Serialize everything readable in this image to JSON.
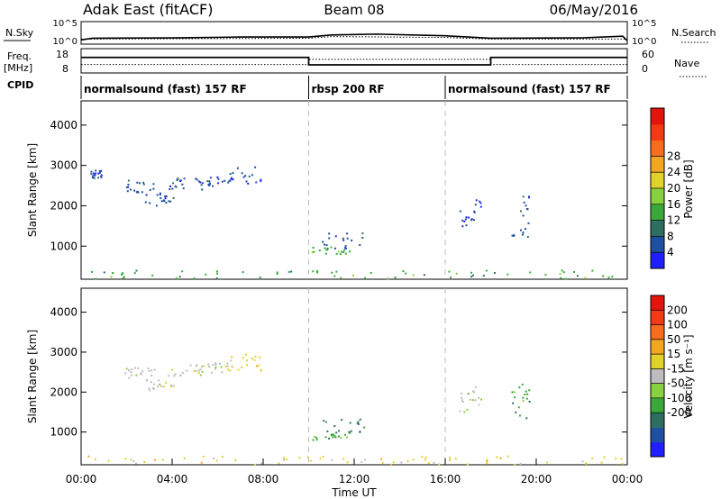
{
  "header": {
    "title": "Adak East (fitACF)",
    "beam": "Beam 08",
    "date": "06/May/2016"
  },
  "chart_data": [
    {
      "type": "line",
      "name": "noise",
      "left_label": "N.Sky",
      "right_label": "N.Search",
      "yticks_left": [
        "10^5",
        "10^0"
      ],
      "yticks_right": [
        "10^5",
        "10^0"
      ],
      "series": [
        {
          "name": "N.Sky",
          "style": "solid",
          "x_hours": [
            0,
            0.5,
            4,
            7,
            10,
            11,
            13,
            16,
            18,
            22,
            23.8,
            24
          ],
          "log10_values": [
            0.8,
            1.2,
            1.3,
            1.5,
            1.5,
            2.0,
            2.2,
            1.8,
            1.2,
            1.3,
            1.7,
            0.6
          ]
        },
        {
          "name": "N.Search",
          "style": "dotted",
          "x_hours": [
            0,
            10,
            11,
            16,
            18,
            24
          ],
          "log10_values": [
            1.0,
            1.2,
            1.6,
            1.4,
            1.0,
            1.0
          ]
        }
      ]
    },
    {
      "type": "line",
      "name": "frequency",
      "left_label": "Freq.",
      "left_unit": "[MHz]",
      "right_label": "Nave",
      "yticks_left": [
        "18",
        "8"
      ],
      "yticks_right": [
        "60",
        "0"
      ],
      "ylim_left": [
        8,
        18
      ],
      "ylim_right": [
        0,
        60
      ],
      "series": [
        {
          "name": "Freq.",
          "style": "solid",
          "x_hours": [
            0,
            10,
            10,
            18,
            18,
            24
          ],
          "values": [
            14.5,
            14.5,
            11.2,
            11.2,
            14.5,
            14.5
          ]
        },
        {
          "name": "Nave",
          "style": "dotted",
          "x_hours": [
            0,
            10,
            10,
            18,
            18,
            24
          ],
          "values": [
            20,
            20,
            34,
            34,
            20,
            20
          ]
        }
      ]
    },
    {
      "type": "table",
      "name": "cpid",
      "label": "CPID",
      "segments": [
        {
          "text": "normalsound (fast) 157 RF",
          "start_hour": 0
        },
        {
          "text": "rbsp 200 RF",
          "start_hour": 10
        },
        {
          "text": "normalsound (fast) 157 RF",
          "start_hour": 16
        }
      ]
    },
    {
      "type": "heatmap",
      "name": "power",
      "ylabel": "Slant Range [km]",
      "yticks": [
        1000,
        2000,
        3000,
        4000
      ],
      "ylim": [
        180,
        4600
      ],
      "xlim_hours": [
        0,
        24
      ],
      "colorbar": {
        "label": "Power [dB]",
        "ticks": [
          "4",
          "8",
          "12",
          "16",
          "20",
          "24",
          "28"
        ],
        "colors": [
          "#1f1fff",
          "#1f4fa0",
          "#2e6e62",
          "#3aa83a",
          "#86d13d",
          "#e1d128",
          "#f3a622",
          "#f66e1c",
          "#f23a14",
          "#e3140c"
        ]
      },
      "blobs": [
        {
          "h0": 0.3,
          "h1": 0.9,
          "r0": 2700,
          "r1": 2900,
          "color_index": 1
        },
        {
          "h0": 1.9,
          "h1": 3.2,
          "r0": 2350,
          "r1": 2650,
          "color_index": 1
        },
        {
          "h0": 2.8,
          "h1": 4.1,
          "r0": 2000,
          "r1": 2350,
          "color_index": 1
        },
        {
          "h0": 3.8,
          "h1": 5.3,
          "r0": 2400,
          "r1": 2700,
          "color_index": 1
        },
        {
          "h0": 5.2,
          "h1": 6.6,
          "r0": 2500,
          "r1": 2750,
          "color_index": 1
        },
        {
          "h0": 6.5,
          "h1": 7.9,
          "r0": 2550,
          "r1": 3000,
          "color_index": 1
        },
        {
          "h0": 10.1,
          "h1": 11.8,
          "r0": 800,
          "r1": 1000,
          "color_index": 3
        },
        {
          "h0": 10.5,
          "h1": 12.4,
          "r0": 950,
          "r1": 1350,
          "color_index": 1
        },
        {
          "h0": 16.6,
          "h1": 17.6,
          "r0": 1500,
          "r1": 2200,
          "color_index": 1
        },
        {
          "h0": 18.9,
          "h1": 19.7,
          "r0": 1200,
          "r1": 2300,
          "color_index": 1
        },
        {
          "h0": 0.2,
          "h1": 23.9,
          "r0": 200,
          "r1": 420,
          "color_index": 3
        }
      ]
    },
    {
      "type": "heatmap",
      "name": "velocity",
      "ylabel": "Slant Range [km]",
      "xlabel": "Time UT",
      "yticks": [
        1000,
        2000,
        3000,
        4000
      ],
      "ylim": [
        180,
        4600
      ],
      "xlim_hours": [
        0,
        24
      ],
      "xticks": [
        "00:00",
        "04:00",
        "08:00",
        "12:00",
        "16:00",
        "20:00",
        "00:00"
      ],
      "xticks_hours": [
        0,
        4,
        8,
        12,
        16,
        20,
        24
      ],
      "colorbar": {
        "label": "Velocity [m s⁻¹]",
        "ticks": [
          "200",
          "100",
          "50",
          "15",
          "-15",
          "-50",
          "-100",
          "-200"
        ],
        "colors": [
          "#1f1fff",
          "#1f4fa0",
          "#2e6e62",
          "#3aa83a",
          "#86d13d",
          "#bdbdbd",
          "#e1d128",
          "#f3a622",
          "#f66e1c",
          "#f23a14",
          "#e3140c"
        ]
      },
      "blobs": [
        {
          "h0": 1.9,
          "h1": 3.2,
          "r0": 2350,
          "r1": 2650,
          "color_index": 5
        },
        {
          "h0": 2.8,
          "h1": 4.1,
          "r0": 2000,
          "r1": 2350,
          "color_index": 5
        },
        {
          "h0": 3.8,
          "h1": 5.3,
          "r0": 2400,
          "r1": 2700,
          "color_index": 5
        },
        {
          "h0": 5.2,
          "h1": 6.6,
          "r0": 2500,
          "r1": 2750,
          "color_index": 5
        },
        {
          "h0": 6.5,
          "h1": 7.9,
          "r0": 2550,
          "r1": 3000,
          "color_index": 6
        },
        {
          "h0": 10.1,
          "h1": 11.8,
          "r0": 800,
          "r1": 1000,
          "color_index": 3
        },
        {
          "h0": 10.5,
          "h1": 12.4,
          "r0": 950,
          "r1": 1350,
          "color_index": 2
        },
        {
          "h0": 16.6,
          "h1": 17.6,
          "r0": 1500,
          "r1": 2200,
          "color_index": 5
        },
        {
          "h0": 18.9,
          "h1": 19.7,
          "r0": 1200,
          "r1": 2300,
          "color_index": 3
        },
        {
          "h0": 0.2,
          "h1": 23.9,
          "r0": 200,
          "r1": 420,
          "color_index": 6
        }
      ]
    }
  ]
}
